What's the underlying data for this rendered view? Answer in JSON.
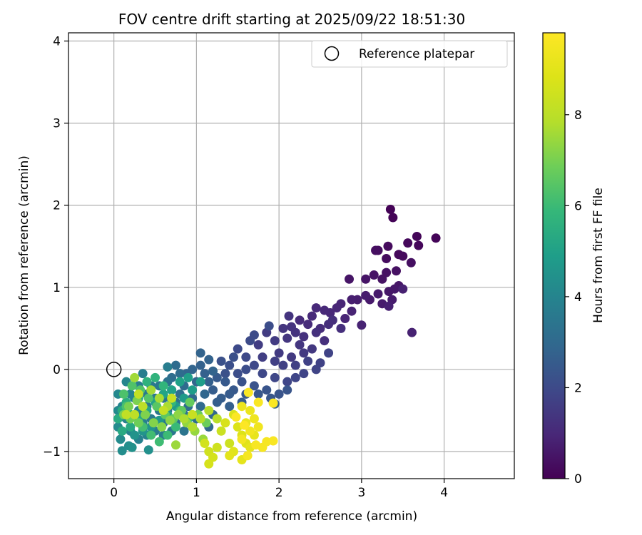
{
  "chart_data": {
    "type": "scatter",
    "title": "FOV centre drift starting at 2025/09/22 18:51:30",
    "xlabel": "Angular distance from reference (arcmin)",
    "ylabel": "Rotation from reference (arcmin)",
    "xlim": [
      -0.55,
      4.85
    ],
    "ylim": [
      -1.33,
      4.1
    ],
    "xticks": [
      0,
      1,
      2,
      3,
      4
    ],
    "yticks": [
      -1,
      0,
      1,
      2,
      3,
      4
    ],
    "xtick_labels": [
      "0",
      "1",
      "2",
      "3",
      "4"
    ],
    "ytick_labels": [
      "−1",
      "0",
      "1",
      "2",
      "3",
      "4"
    ],
    "grid": true,
    "legend": {
      "position": "top-right",
      "entries": [
        "Reference platepar"
      ]
    },
    "reference_point": {
      "x": 0,
      "y": 0,
      "label": "Reference platepar"
    },
    "colorbar": {
      "label": "Hours from first FF file",
      "range": [
        0,
        9.8
      ],
      "ticks": [
        0,
        2,
        4,
        6,
        8
      ],
      "tick_labels": [
        "0",
        "2",
        "4",
        "6",
        "8"
      ],
      "colormap": "viridis"
    },
    "points": [
      [
        3.35,
        1.95,
        0.05
      ],
      [
        3.38,
        1.85,
        0.08
      ],
      [
        3.9,
        1.6,
        0.1
      ],
      [
        3.67,
        1.62,
        0.12
      ],
      [
        3.69,
        1.51,
        0.15
      ],
      [
        3.56,
        1.54,
        0.18
      ],
      [
        3.45,
        1.4,
        0.2
      ],
      [
        3.5,
        1.38,
        0.22
      ],
      [
        3.32,
        1.5,
        0.25
      ],
      [
        3.3,
        1.35,
        0.28
      ],
      [
        3.2,
        1.45,
        0.3
      ],
      [
        3.17,
        1.45,
        0.32
      ],
      [
        3.6,
        1.3,
        0.35
      ],
      [
        3.42,
        1.2,
        0.38
      ],
      [
        3.3,
        1.18,
        0.4
      ],
      [
        3.25,
        1.1,
        0.42
      ],
      [
        3.15,
        1.15,
        0.45
      ],
      [
        3.05,
        1.1,
        0.48
      ],
      [
        2.85,
        1.1,
        0.5
      ],
      [
        3.45,
        1.02,
        0.52
      ],
      [
        3.33,
        0.95,
        0.55
      ],
      [
        3.4,
        0.98,
        0.58
      ],
      [
        3.2,
        0.92,
        0.6
      ],
      [
        3.1,
        0.85,
        0.62
      ],
      [
        3.25,
        0.8,
        0.65
      ],
      [
        3.37,
        0.85,
        0.68
      ],
      [
        3.05,
        0.9,
        0.7
      ],
      [
        2.95,
        0.85,
        0.72
      ],
      [
        2.88,
        0.85,
        0.75
      ],
      [
        3.33,
        0.77,
        0.78
      ],
      [
        3.5,
        0.98,
        0.8
      ],
      [
        3.61,
        0.45,
        0.82
      ],
      [
        3.0,
        0.54,
        0.85
      ],
      [
        2.88,
        0.71,
        0.88
      ],
      [
        2.8,
        0.62,
        0.9
      ],
      [
        2.75,
        0.8,
        0.92
      ],
      [
        2.7,
        0.75,
        0.95
      ],
      [
        2.62,
        0.69,
        0.98
      ],
      [
        2.55,
        0.72,
        1.0
      ],
      [
        2.45,
        0.75,
        1.02
      ],
      [
        2.4,
        0.65,
        1.05
      ],
      [
        2.25,
        0.6,
        1.08
      ],
      [
        2.35,
        0.55,
        1.1
      ],
      [
        2.5,
        0.5,
        1.12
      ],
      [
        2.6,
        0.55,
        1.15
      ],
      [
        2.65,
        0.6,
        1.18
      ],
      [
        2.75,
        0.5,
        1.2
      ],
      [
        2.55,
        0.35,
        1.22
      ],
      [
        2.45,
        0.45,
        1.25
      ],
      [
        2.3,
        0.4,
        1.28
      ],
      [
        2.2,
        0.45,
        1.3
      ],
      [
        2.15,
        0.52,
        1.32
      ],
      [
        2.12,
        0.65,
        1.35
      ],
      [
        2.05,
        0.5,
        1.38
      ],
      [
        2.1,
        0.38,
        1.4
      ],
      [
        2.25,
        0.3,
        1.42
      ],
      [
        2.4,
        0.25,
        1.45
      ],
      [
        2.3,
        0.2,
        1.48
      ],
      [
        2.15,
        0.15,
        1.5
      ],
      [
        2.0,
        0.2,
        1.52
      ],
      [
        1.95,
        0.35,
        1.55
      ],
      [
        1.85,
        0.45,
        1.58
      ],
      [
        1.75,
        0.3,
        1.6
      ],
      [
        1.8,
        0.15,
        1.62
      ],
      [
        1.95,
        0.1,
        1.65
      ],
      [
        2.05,
        0.05,
        1.68
      ],
      [
        2.2,
        0.05,
        1.7
      ],
      [
        2.35,
        0.1,
        1.72
      ],
      [
        2.5,
        0.08,
        1.75
      ],
      [
        2.6,
        0.2,
        1.78
      ],
      [
        2.45,
        0.0,
        1.8
      ],
      [
        2.3,
        -0.05,
        1.82
      ],
      [
        2.2,
        -0.1,
        1.85
      ],
      [
        2.1,
        -0.15,
        1.88
      ],
      [
        1.95,
        -0.1,
        1.9
      ],
      [
        1.8,
        -0.05,
        1.92
      ],
      [
        1.7,
        0.05,
        1.95
      ],
      [
        1.6,
        0.15,
        1.98
      ],
      [
        1.5,
        0.25,
        2.0
      ],
      [
        1.65,
        0.35,
        2.02
      ],
      [
        1.7,
        0.42,
        2.05
      ],
      [
        1.88,
        0.53,
        2.08
      ],
      [
        1.6,
        0.0,
        2.1
      ],
      [
        1.5,
        -0.05,
        2.12
      ],
      [
        1.4,
        0.05,
        2.15
      ],
      [
        1.45,
        0.15,
        2.18
      ],
      [
        1.3,
        0.1,
        2.2
      ],
      [
        1.35,
        -0.05,
        2.22
      ],
      [
        1.55,
        -0.15,
        2.25
      ],
      [
        1.7,
        -0.2,
        2.28
      ],
      [
        1.85,
        -0.25,
        2.3
      ],
      [
        2.0,
        -0.3,
        2.32
      ],
      [
        2.1,
        -0.25,
        2.35
      ],
      [
        1.9,
        -0.35,
        2.38
      ],
      [
        1.75,
        -0.3,
        2.4
      ],
      [
        1.6,
        -0.3,
        2.42
      ],
      [
        1.45,
        -0.25,
        2.45
      ],
      [
        1.35,
        -0.15,
        2.48
      ],
      [
        1.25,
        -0.1,
        2.5
      ],
      [
        1.4,
        -0.3,
        2.52
      ],
      [
        1.55,
        -0.4,
        2.55
      ],
      [
        1.3,
        -0.35,
        2.58
      ],
      [
        1.2,
        -0.25,
        2.6
      ],
      [
        1.25,
        -0.4,
        2.62
      ],
      [
        1.4,
        -0.45,
        2.65
      ],
      [
        1.95,
        -0.42,
        2.68
      ],
      [
        1.15,
        -0.15,
        2.7
      ],
      [
        1.1,
        -0.05,
        2.72
      ],
      [
        1.05,
        0.05,
        2.75
      ],
      [
        1.15,
        0.12,
        2.78
      ],
      [
        1.05,
        0.2,
        2.8
      ],
      [
        1.2,
        -0.02,
        2.82
      ],
      [
        0.95,
        0.0,
        2.85
      ],
      [
        0.88,
        -0.05,
        2.88
      ],
      [
        1.0,
        -0.15,
        2.9
      ],
      [
        1.1,
        -0.3,
        2.92
      ],
      [
        1.2,
        -0.55,
        2.95
      ],
      [
        1.15,
        -0.7,
        2.98
      ],
      [
        1.05,
        -0.45,
        3.0
      ],
      [
        0.95,
        -0.35,
        3.02
      ],
      [
        0.85,
        -0.2,
        3.05
      ],
      [
        0.8,
        -0.05,
        3.08
      ],
      [
        0.75,
        0.05,
        3.1
      ],
      [
        0.7,
        -0.1,
        3.12
      ],
      [
        0.8,
        -0.3,
        3.15
      ],
      [
        0.9,
        -0.45,
        3.18
      ],
      [
        1.0,
        -0.6,
        3.2
      ],
      [
        0.95,
        -0.7,
        3.22
      ],
      [
        0.85,
        -0.55,
        3.25
      ],
      [
        0.75,
        -0.4,
        3.28
      ],
      [
        0.7,
        -0.25,
        3.3
      ],
      [
        0.65,
        -0.15,
        3.32
      ],
      [
        0.6,
        -0.35,
        3.35
      ],
      [
        0.65,
        -0.5,
        3.38
      ],
      [
        0.75,
        -0.65,
        3.4
      ],
      [
        0.85,
        -0.75,
        3.42
      ],
      [
        0.7,
        -0.75,
        3.45
      ],
      [
        0.6,
        -0.65,
        3.48
      ],
      [
        0.55,
        -0.5,
        3.5
      ],
      [
        0.5,
        -0.35,
        3.52
      ],
      [
        0.55,
        -0.2,
        3.55
      ],
      [
        0.45,
        -0.2,
        3.58
      ],
      [
        0.4,
        -0.3,
        3.6
      ],
      [
        0.4,
        -0.45,
        3.62
      ],
      [
        0.45,
        -0.6,
        3.65
      ],
      [
        0.5,
        -0.75,
        3.68
      ],
      [
        0.6,
        -0.8,
        3.7
      ],
      [
        0.65,
        0.03,
        3.72
      ],
      [
        0.35,
        -0.05,
        3.75
      ],
      [
        0.3,
        -0.2,
        3.78
      ],
      [
        0.25,
        -0.35,
        3.8
      ],
      [
        0.3,
        -0.5,
        3.82
      ],
      [
        0.35,
        -0.65,
        3.85
      ],
      [
        0.4,
        -0.8,
        3.88
      ],
      [
        0.3,
        -0.85,
        3.9
      ],
      [
        0.2,
        -0.75,
        3.92
      ],
      [
        0.15,
        -0.6,
        3.95
      ],
      [
        0.1,
        -0.45,
        3.98
      ],
      [
        0.2,
        -0.3,
        4.0
      ],
      [
        0.15,
        -0.15,
        4.05
      ],
      [
        0.05,
        -0.3,
        4.1
      ],
      [
        0.05,
        -0.5,
        4.15
      ],
      [
        0.05,
        -0.7,
        4.2
      ],
      [
        0.08,
        -0.85,
        4.25
      ],
      [
        0.1,
        -0.99,
        4.3
      ],
      [
        0.18,
        -0.93,
        4.35
      ],
      [
        0.42,
        -0.98,
        4.4
      ],
      [
        0.22,
        -0.95,
        4.45
      ],
      [
        0.25,
        -0.8,
        4.5
      ],
      [
        0.35,
        -0.75,
        4.55
      ],
      [
        0.45,
        -0.7,
        4.6
      ],
      [
        0.55,
        -0.62,
        4.65
      ],
      [
        0.65,
        -0.55,
        4.7
      ],
      [
        0.75,
        -0.45,
        4.75
      ],
      [
        0.85,
        -0.35,
        4.8
      ],
      [
        0.95,
        -0.25,
        4.85
      ],
      [
        1.05,
        -0.15,
        4.9
      ],
      [
        0.9,
        -0.1,
        4.95
      ],
      [
        0.8,
        -0.15,
        5.0
      ],
      [
        0.7,
        -0.25,
        5.05
      ],
      [
        0.6,
        -0.3,
        5.1
      ],
      [
        0.5,
        -0.4,
        5.15
      ],
      [
        0.4,
        -0.5,
        5.2
      ],
      [
        0.3,
        -0.6,
        5.25
      ],
      [
        0.2,
        -0.7,
        5.3
      ],
      [
        0.1,
        -0.75,
        5.35
      ],
      [
        0.05,
        -0.6,
        5.4
      ],
      [
        0.1,
        -0.5,
        5.45
      ],
      [
        0.15,
        -0.4,
        5.5
      ],
      [
        0.2,
        -0.55,
        5.55
      ],
      [
        0.3,
        -0.35,
        5.6
      ],
      [
        0.4,
        -0.15,
        5.65
      ],
      [
        0.5,
        -0.1,
        5.7
      ],
      [
        0.6,
        -0.2,
        5.75
      ],
      [
        0.7,
        -0.4,
        5.8
      ],
      [
        0.8,
        -0.5,
        5.85
      ],
      [
        0.9,
        -0.6,
        5.9
      ],
      [
        0.75,
        -0.7,
        5.95
      ],
      [
        0.65,
        -0.8,
        6.0
      ],
      [
        0.55,
        -0.88,
        6.05
      ],
      [
        0.45,
        -0.8,
        6.1
      ],
      [
        0.35,
        -0.7,
        6.15
      ],
      [
        0.25,
        -0.55,
        6.2
      ],
      [
        0.15,
        -0.45,
        6.25
      ],
      [
        0.12,
        -0.3,
        6.3
      ],
      [
        0.22,
        -0.2,
        6.35
      ],
      [
        0.32,
        -0.25,
        6.4
      ],
      [
        0.42,
        -0.35,
        6.45
      ],
      [
        0.52,
        -0.45,
        6.5
      ],
      [
        0.62,
        -0.55,
        6.55
      ],
      [
        0.72,
        -0.6,
        6.6
      ],
      [
        0.82,
        -0.5,
        6.65
      ],
      [
        0.92,
        -0.4,
        6.7
      ],
      [
        1.02,
        -0.55,
        6.75
      ],
      [
        1.12,
        -0.65,
        6.8
      ],
      [
        0.3,
        -0.65,
        6.85
      ],
      [
        0.2,
        -0.6,
        6.9
      ],
      [
        0.12,
        -0.55,
        6.95
      ],
      [
        0.18,
        -0.45,
        7.0
      ],
      [
        0.28,
        -0.38,
        7.05
      ],
      [
        0.38,
        -0.55,
        7.1
      ],
      [
        0.48,
        -0.65,
        7.15
      ],
      [
        0.58,
        -0.7,
        7.2
      ],
      [
        0.68,
        -0.62,
        7.25
      ],
      [
        0.78,
        -0.55,
        7.3
      ],
      [
        0.88,
        -0.65,
        7.35
      ],
      [
        0.98,
        -0.75,
        7.4
      ],
      [
        1.08,
        -0.85,
        7.45
      ],
      [
        0.75,
        -0.92,
        7.5
      ],
      [
        0.25,
        -0.1,
        7.55
      ],
      [
        0.45,
        -0.25,
        7.6
      ],
      [
        0.55,
        -0.35,
        7.65
      ],
      [
        0.65,
        -0.45,
        7.7
      ],
      [
        0.85,
        -0.6,
        7.75
      ],
      [
        0.95,
        -0.7,
        7.8
      ],
      [
        1.05,
        -0.6,
        7.85
      ],
      [
        1.15,
        -0.5,
        7.9
      ],
      [
        1.25,
        -0.6,
        7.95
      ],
      [
        0.35,
        -0.45,
        8.0
      ],
      [
        0.25,
        -0.55,
        8.05
      ],
      [
        0.15,
        -0.55,
        8.1
      ],
      [
        0.3,
        -0.3,
        8.15
      ],
      [
        0.6,
        -0.5,
        8.2
      ],
      [
        0.7,
        -0.35,
        8.25
      ],
      [
        0.95,
        -0.55,
        8.3
      ],
      [
        1.3,
        -0.75,
        8.35
      ],
      [
        1.4,
        -0.9,
        8.4
      ],
      [
        1.25,
        -0.95,
        8.45
      ],
      [
        1.15,
        -1.0,
        8.5
      ],
      [
        1.1,
        -0.9,
        8.55
      ],
      [
        1.2,
        -1.07,
        8.6
      ],
      [
        1.15,
        -1.15,
        8.65
      ],
      [
        1.35,
        -0.65,
        8.7
      ],
      [
        1.45,
        -0.55,
        8.75
      ],
      [
        1.5,
        -0.7,
        8.8
      ],
      [
        1.55,
        -0.8,
        8.85
      ],
      [
        1.6,
        -0.9,
        8.9
      ],
      [
        1.45,
        -1.0,
        8.95
      ],
      [
        1.4,
        -1.05,
        9.0
      ],
      [
        1.55,
        -1.1,
        9.05
      ],
      [
        1.65,
        -0.95,
        9.1
      ],
      [
        1.7,
        -0.8,
        9.15
      ],
      [
        1.6,
        -0.65,
        9.2
      ],
      [
        1.65,
        -0.5,
        9.25
      ],
      [
        1.55,
        -0.45,
        9.3
      ],
      [
        1.7,
        -0.6,
        9.35
      ],
      [
        1.75,
        -0.7,
        9.4
      ],
      [
        1.65,
        -0.75,
        9.45
      ],
      [
        1.55,
        -0.85,
        9.5
      ],
      [
        1.62,
        -1.05,
        9.55
      ],
      [
        1.8,
        -0.95,
        9.58
      ],
      [
        1.85,
        -0.88,
        9.6
      ],
      [
        1.72,
        -0.92,
        9.62
      ],
      [
        1.93,
        -0.87,
        9.65
      ],
      [
        1.75,
        -0.4,
        9.68
      ],
      [
        1.63,
        -0.28,
        9.7
      ],
      [
        1.93,
        -0.41,
        9.72
      ],
      [
        1.48,
        -0.58,
        9.75
      ],
      [
        1.58,
        -0.68,
        9.78
      ]
    ]
  }
}
